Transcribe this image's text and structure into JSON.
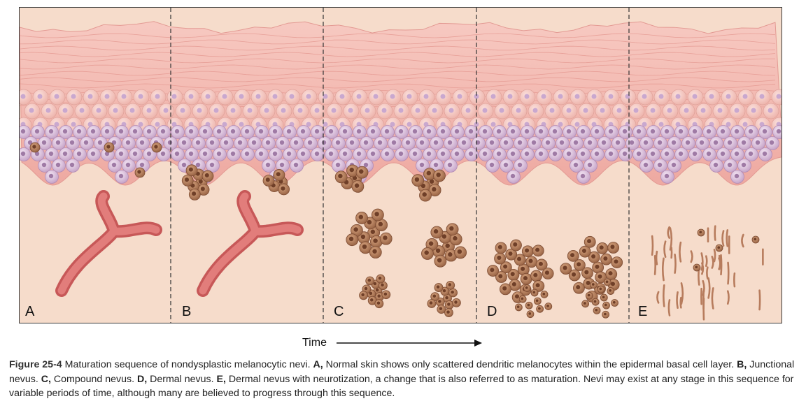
{
  "panels": [
    {
      "label": "A"
    },
    {
      "label": "B"
    },
    {
      "label": "C"
    },
    {
      "label": "D"
    },
    {
      "label": "E"
    }
  ],
  "time_axis": {
    "label": "Time"
  },
  "caption": {
    "figure_number": "Figure 25-4",
    "text_intro": " Maturation sequence of nondysplastic melanocytic nevi. ",
    "a_label": "A,",
    "a_text": " Normal skin shows only scattered dendritic melanocytes within the epidermal basal cell layer. ",
    "b_label": "B,",
    "b_text": " Junctional nevus. ",
    "c_label": "C,",
    "c_text": " Compound nevus. ",
    "d_label": "D,",
    "d_text": " Dermal nevus. ",
    "e_label": "E,",
    "e_text": " Dermal nevus with neurotization, a change that is also referred to as maturation. Nevi may exist at any stage in this sequence for variable periods of time, although many are believed to progress through this sequence."
  },
  "colors": {
    "dermis": "#f6dccb",
    "epidermis": "#f1b7ae",
    "basal_cell": "#d9bfd9",
    "melanocyte": "#a9785a",
    "vessel": "#d86a6a"
  }
}
